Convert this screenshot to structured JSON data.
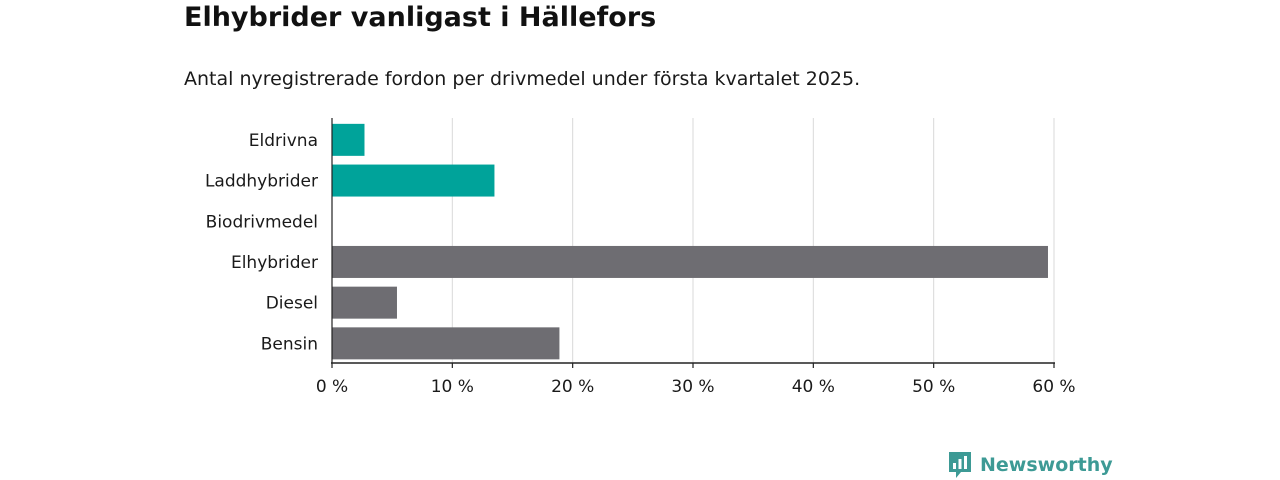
{
  "title": "Elhybrider vanligast i Hällefors",
  "subtitle": "Antal nyregistrerade fordon per drivmedel under första kvartalet 2025.",
  "brand": {
    "name": "Newsworthy",
    "icon": "newsworthy-logo-icon"
  },
  "colors": {
    "highlight": "#00a39a",
    "default": "#6e6d72",
    "grid": "#d9d9d9",
    "axis": "#222222"
  },
  "chart_data": {
    "type": "bar",
    "orientation": "horizontal",
    "categories": [
      "Eldrivna",
      "Laddhybrider",
      "Biodrivmedel",
      "Elhybrider",
      "Diesel",
      "Bensin"
    ],
    "values": [
      2.7,
      13.5,
      0,
      59.5,
      5.4,
      18.9
    ],
    "highlighted": [
      true,
      true,
      true,
      false,
      false,
      false
    ],
    "xlim": [
      0,
      60
    ],
    "xticks": [
      0,
      10,
      20,
      30,
      40,
      50,
      60
    ],
    "xtick_labels": [
      "0 %",
      "10 %",
      "20 %",
      "30 %",
      "40 %",
      "50 %",
      "60 %"
    ],
    "grid": true
  }
}
